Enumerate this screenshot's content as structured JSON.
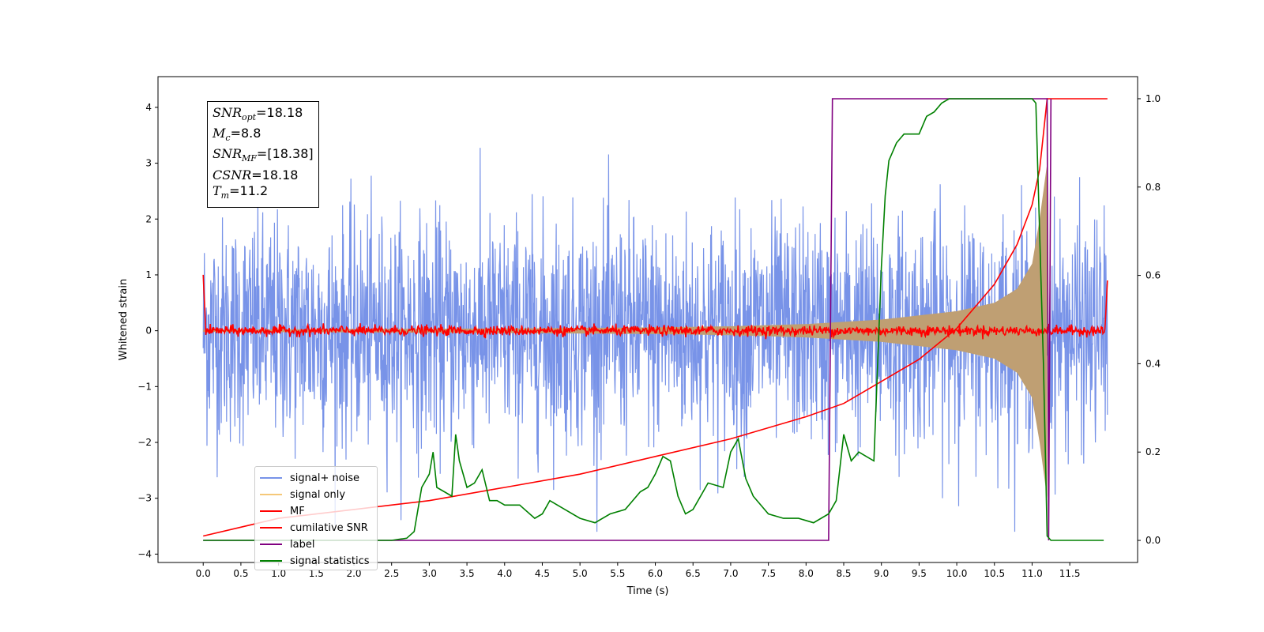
{
  "chart_data": {
    "type": "line",
    "title": "",
    "xlabel": "Time (s)",
    "ylabel": "Whitened strain",
    "xlim": [
      -0.6,
      12.4
    ],
    "ylim": [
      -4.15,
      4.55
    ],
    "y2lim": [
      -0.05,
      1.05
    ],
    "x_ticks": [
      "0.0",
      "0.5",
      "1.0",
      "1.5",
      "2.0",
      "2.5",
      "3.0",
      "3.5",
      "4.0",
      "4.5",
      "5.0",
      "5.5",
      "6.0",
      "6.5",
      "7.0",
      "7.5",
      "8.0",
      "8.5",
      "9.0",
      "9.5",
      "10.0",
      "10.5",
      "11.0",
      "11.5"
    ],
    "y_ticks": [
      "−4",
      "−3",
      "−2",
      "−1",
      "0",
      "1",
      "2",
      "3",
      "4"
    ],
    "y2_ticks": [
      "0.0",
      "0.2",
      "0.4",
      "0.6",
      "0.8",
      "1.0"
    ],
    "legend_position": "lower-left",
    "annotations": {
      "snr_opt": "=18.18",
      "mc": "=8.8",
      "snr_mf": "=[18.38]",
      "csnr": "=18.18",
      "tm": "=11.2"
    },
    "series": [
      {
        "name": "signal+ noise",
        "color": "#7893e8",
        "axis": "left",
        "description_noise_amplitude_peak": 3.6,
        "x_range": [
          0.0,
          12.0
        ]
      },
      {
        "name": "signal only",
        "color": "#f5c879",
        "axis": "left",
        "envelope_x": [
          0.0,
          2.0,
          4.0,
          6.0,
          7.0,
          8.0,
          9.0,
          10.0,
          10.5,
          10.8,
          11.0,
          11.1,
          11.2
        ],
        "envelope_y": [
          0.02,
          0.03,
          0.04,
          0.06,
          0.08,
          0.12,
          0.2,
          0.35,
          0.5,
          0.75,
          1.2,
          2.0,
          3.0
        ]
      },
      {
        "name": "MF",
        "color": "#ff0000",
        "axis": "left",
        "x": [
          0.0,
          0.02,
          0.05,
          11.95,
          11.98,
          12.0
        ],
        "y": [
          1.0,
          0.3,
          0.05,
          0.05,
          0.3,
          0.9
        ]
      },
      {
        "name": "cumilative SNR",
        "color": "#ff0000",
        "axis": "right",
        "x": [
          0.0,
          0.5,
          1.0,
          2.0,
          3.0,
          4.0,
          5.0,
          6.0,
          7.0,
          8.0,
          8.5,
          9.0,
          9.5,
          10.0,
          10.5,
          10.8,
          11.0,
          11.1,
          11.2,
          12.0
        ],
        "y": [
          0.01,
          0.03,
          0.05,
          0.07,
          0.09,
          0.12,
          0.15,
          0.19,
          0.23,
          0.28,
          0.31,
          0.36,
          0.41,
          0.48,
          0.58,
          0.67,
          0.76,
          0.84,
          1.0,
          1.0
        ]
      },
      {
        "name": "label",
        "color": "#800080",
        "axis": "right",
        "x": [
          0.0,
          8.3,
          8.35,
          11.2,
          11.22,
          11.25
        ],
        "y": [
          0.0,
          0.0,
          1.0,
          1.0,
          0.0,
          1.0
        ]
      },
      {
        "name": "signal statistics",
        "color": "#008000",
        "axis": "right",
        "x": [
          0.0,
          0.5,
          1.0,
          1.5,
          2.0,
          2.5,
          2.7,
          2.8,
          2.9,
          3.0,
          3.05,
          3.1,
          3.2,
          3.3,
          3.35,
          3.4,
          3.5,
          3.6,
          3.7,
          3.8,
          3.9,
          4.0,
          4.2,
          4.4,
          4.5,
          4.6,
          4.8,
          5.0,
          5.2,
          5.4,
          5.6,
          5.8,
          5.9,
          6.0,
          6.1,
          6.2,
          6.3,
          6.4,
          6.5,
          6.7,
          6.9,
          7.0,
          7.1,
          7.2,
          7.3,
          7.5,
          7.7,
          7.9,
          8.1,
          8.3,
          8.4,
          8.5,
          8.6,
          8.7,
          8.8,
          8.9,
          9.0,
          9.05,
          9.1,
          9.2,
          9.3,
          9.5,
          9.6,
          9.7,
          9.8,
          9.9,
          10.0,
          10.5,
          11.0,
          11.05,
          11.15,
          11.2,
          11.25,
          11.3,
          11.5,
          11.95
        ],
        "y": [
          0.0,
          0.0,
          0.0,
          0.0,
          0.0,
          0.0,
          0.005,
          0.02,
          0.12,
          0.15,
          0.2,
          0.12,
          0.11,
          0.1,
          0.24,
          0.18,
          0.12,
          0.13,
          0.16,
          0.09,
          0.09,
          0.08,
          0.08,
          0.05,
          0.06,
          0.09,
          0.07,
          0.05,
          0.04,
          0.06,
          0.07,
          0.11,
          0.12,
          0.15,
          0.19,
          0.18,
          0.1,
          0.06,
          0.07,
          0.13,
          0.12,
          0.2,
          0.23,
          0.14,
          0.1,
          0.06,
          0.05,
          0.05,
          0.04,
          0.06,
          0.09,
          0.24,
          0.18,
          0.2,
          0.19,
          0.18,
          0.62,
          0.78,
          0.86,
          0.9,
          0.92,
          0.92,
          0.96,
          0.97,
          0.99,
          1.0,
          1.0,
          1.0,
          1.0,
          0.99,
          0.4,
          0.01,
          0.0,
          0.0,
          0.0,
          0.0
        ]
      }
    ]
  }
}
